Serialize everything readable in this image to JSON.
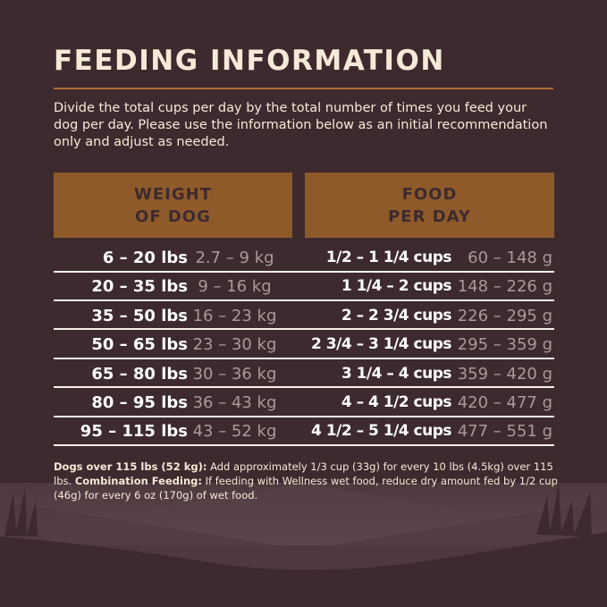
{
  "title": "FEEDING INFORMATION",
  "intro": "Divide the total cups per day by the total number of times you feed your dog per day. Please use the information below as an initial recommendation only and adjust as needed.",
  "headers": {
    "weight_line1": "WEIGHT",
    "weight_line2": "OF DOG",
    "food_line1": "FOOD",
    "food_line2": "PER DAY"
  },
  "rows": [
    {
      "lbs": "6 – 20 lbs",
      "kg": "2.7 – 9 kg",
      "cups": "1/2 – 1 1/4 cups",
      "g": "60 – 148 g"
    },
    {
      "lbs": "20 – 35 lbs",
      "kg": "9 – 16 kg",
      "cups": "1 1/4 – 2 cups",
      "g": "148 – 226 g"
    },
    {
      "lbs": "35 – 50 lbs",
      "kg": "16 – 23 kg",
      "cups": "2 – 2 3/4 cups",
      "g": "226 – 295 g"
    },
    {
      "lbs": "50 – 65 lbs",
      "kg": "23 – 30 kg",
      "cups": "2 3/4 – 3 1/4 cups",
      "g": "295 – 359 g"
    },
    {
      "lbs": "65 – 80 lbs",
      "kg": "30 – 36 kg",
      "cups": "3 1/4 – 4 cups",
      "g": "359 – 420 g"
    },
    {
      "lbs": "80 – 95 lbs",
      "kg": "36 – 43 kg",
      "cups": "4 – 4 1/2 cups",
      "g": "420 – 477 g"
    },
    {
      "lbs": "95 – 115 lbs",
      "kg": "43 – 52 kg",
      "cups": "4 1/2 – 5 1/4 cups",
      "g": "477 – 551 g"
    }
  ],
  "note": {
    "bold1": "Dogs over 115 lbs (52 kg):",
    "text1": " Add approximately 1/3 cup (33g) for every 10 lbs (4.5kg) over 115 lbs. ",
    "bold2": "Combination Feeding:",
    "text2": " If feeding with Wellness wet food, reduce dry amount fed by 1/2 cup (46g) for every 6 oz (170g) of wet food."
  },
  "colors": {
    "background": "#3d2a2e",
    "header": "#8f5a2a",
    "accent": "#a86d30",
    "text": "#f5ead8"
  }
}
